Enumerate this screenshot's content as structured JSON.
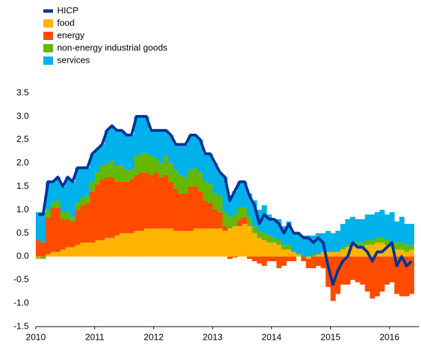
{
  "chart_data": {
    "type": "bar",
    "stacked": true,
    "x": [
      2010.0,
      2010.083,
      2010.167,
      2010.25,
      2010.333,
      2010.417,
      2010.5,
      2010.583,
      2010.667,
      2010.75,
      2010.833,
      2010.917,
      2011.0,
      2011.083,
      2011.167,
      2011.25,
      2011.333,
      2011.417,
      2011.5,
      2011.583,
      2011.667,
      2011.75,
      2011.833,
      2011.917,
      2012.0,
      2012.083,
      2012.167,
      2012.25,
      2012.333,
      2012.417,
      2012.5,
      2012.583,
      2012.667,
      2012.75,
      2012.833,
      2012.917,
      2013.0,
      2013.083,
      2013.167,
      2013.25,
      2013.333,
      2013.417,
      2013.5,
      2013.583,
      2013.667,
      2013.75,
      2013.833,
      2013.917,
      2014.0,
      2014.083,
      2014.167,
      2014.25,
      2014.333,
      2014.417,
      2014.5,
      2014.583,
      2014.667,
      2014.75,
      2014.833,
      2014.917,
      2015.0,
      2015.083,
      2015.167,
      2015.25,
      2015.333,
      2015.417,
      2015.5,
      2015.583,
      2015.667,
      2015.75,
      2015.833,
      2015.917,
      2016.0,
      2016.083,
      2016.167,
      2016.25,
      2016.333
    ],
    "series": [
      {
        "name": "HICP",
        "type": "line",
        "color": "#003299",
        "values": [
          0.9,
          0.9,
          1.6,
          1.6,
          1.7,
          1.5,
          1.7,
          1.6,
          1.9,
          1.9,
          1.9,
          2.2,
          2.3,
          2.4,
          2.7,
          2.8,
          2.7,
          2.7,
          2.6,
          2.6,
          3.0,
          3.0,
          3.0,
          2.7,
          2.7,
          2.7,
          2.7,
          2.6,
          2.4,
          2.4,
          2.4,
          2.6,
          2.6,
          2.5,
          2.2,
          2.2,
          2.0,
          1.8,
          1.7,
          1.2,
          1.4,
          1.6,
          1.6,
          1.3,
          1.1,
          0.7,
          0.9,
          0.8,
          0.8,
          0.7,
          0.5,
          0.7,
          0.5,
          0.5,
          0.4,
          0.4,
          0.3,
          0.4,
          0.3,
          -0.2,
          -0.6,
          -0.3,
          -0.1,
          0.0,
          0.3,
          0.2,
          0.2,
          0.1,
          -0.1,
          0.1,
          0.1,
          0.2,
          0.3,
          -0.2,
          0.0,
          -0.2,
          -0.1
        ]
      },
      {
        "name": "food",
        "type": "bar",
        "color": "#ffb400",
        "values": [
          -0.03,
          0.0,
          0.05,
          0.1,
          0.1,
          0.15,
          0.2,
          0.2,
          0.25,
          0.3,
          0.3,
          0.3,
          0.35,
          0.35,
          0.4,
          0.4,
          0.45,
          0.5,
          0.5,
          0.5,
          0.55,
          0.55,
          0.6,
          0.6,
          0.6,
          0.6,
          0.6,
          0.6,
          0.55,
          0.55,
          0.55,
          0.55,
          0.6,
          0.6,
          0.6,
          0.6,
          0.6,
          0.6,
          0.55,
          0.6,
          0.65,
          0.65,
          0.7,
          0.65,
          0.5,
          0.4,
          0.35,
          0.3,
          0.3,
          0.25,
          0.15,
          0.15,
          0.1,
          0.05,
          0.0,
          -0.05,
          0.0,
          0.05,
          0.1,
          0.1,
          0.1,
          0.1,
          0.15,
          0.2,
          0.25,
          0.2,
          0.2,
          0.25,
          0.25,
          0.3,
          0.3,
          0.25,
          0.2,
          0.15,
          0.15,
          0.1,
          0.15
        ]
      },
      {
        "name": "energy",
        "type": "bar",
        "color": "#ff4b00",
        "values": [
          0.35,
          0.3,
          0.8,
          0.95,
          0.95,
          0.65,
          0.6,
          0.55,
          0.75,
          0.8,
          0.85,
          1.1,
          1.2,
          1.3,
          1.3,
          1.3,
          1.15,
          1.1,
          1.1,
          1.15,
          1.2,
          1.25,
          1.2,
          1.15,
          1.2,
          1.1,
          1.15,
          1.0,
          0.9,
          0.8,
          0.8,
          0.95,
          0.9,
          0.8,
          0.6,
          0.55,
          0.4,
          0.35,
          0.1,
          -0.05,
          -0.02,
          0.15,
          0.15,
          -0.05,
          -0.1,
          -0.15,
          -0.2,
          -0.1,
          -0.1,
          -0.25,
          -0.2,
          -0.1,
          -0.1,
          0.0,
          -0.1,
          -0.2,
          -0.25,
          -0.2,
          -0.25,
          -0.65,
          -0.95,
          -0.8,
          -0.6,
          -0.6,
          -0.5,
          -0.55,
          -0.6,
          -0.75,
          -0.9,
          -0.85,
          -0.75,
          -0.6,
          -0.55,
          -0.8,
          -0.85,
          -0.85,
          -0.8
        ]
      },
      {
        "name": "non-energy industrial goods",
        "type": "bar",
        "color": "#65b800",
        "values": [
          -0.02,
          -0.05,
          0.15,
          0.1,
          0.15,
          0.15,
          0.15,
          0.1,
          0.15,
          0.15,
          0.15,
          0.2,
          0.25,
          0.3,
          0.3,
          0.35,
          0.35,
          0.35,
          0.25,
          0.2,
          0.4,
          0.4,
          0.4,
          0.4,
          0.3,
          0.3,
          0.4,
          0.4,
          0.4,
          0.4,
          0.35,
          0.35,
          0.4,
          0.4,
          0.4,
          0.4,
          0.35,
          0.35,
          0.3,
          0.25,
          0.25,
          0.25,
          0.2,
          0.2,
          0.15,
          0.15,
          0.15,
          0.15,
          0.1,
          0.1,
          0.1,
          0.1,
          0.0,
          0.0,
          0.0,
          0.0,
          0.05,
          0.0,
          0.0,
          0.0,
          0.0,
          0.0,
          0.05,
          0.05,
          0.05,
          0.1,
          0.1,
          0.1,
          0.1,
          0.1,
          0.1,
          0.1,
          0.1,
          0.15,
          0.15,
          0.15,
          0.1
        ]
      },
      {
        "name": "services",
        "type": "bar",
        "color": "#00b1ea",
        "values": [
          0.6,
          0.65,
          0.6,
          0.45,
          0.5,
          0.55,
          0.75,
          0.75,
          0.75,
          0.65,
          0.6,
          0.6,
          0.5,
          0.45,
          0.7,
          0.75,
          0.75,
          0.75,
          0.75,
          0.75,
          0.85,
          0.8,
          0.8,
          0.55,
          0.6,
          0.7,
          0.55,
          0.6,
          0.55,
          0.65,
          0.7,
          0.75,
          0.7,
          0.7,
          0.6,
          0.65,
          0.65,
          0.5,
          0.75,
          0.45,
          0.5,
          0.55,
          0.55,
          0.5,
          0.55,
          0.45,
          0.6,
          0.45,
          0.4,
          0.45,
          0.4,
          0.5,
          0.4,
          0.45,
          0.45,
          0.45,
          0.4,
          0.45,
          0.4,
          0.45,
          0.4,
          0.45,
          0.5,
          0.55,
          0.55,
          0.5,
          0.5,
          0.55,
          0.55,
          0.55,
          0.6,
          0.55,
          0.65,
          0.45,
          0.55,
          0.45,
          0.45
        ]
      }
    ],
    "xlim": [
      2010,
      2016.5
    ],
    "xticks": [
      2010,
      2011,
      2012,
      2013,
      2014,
      2015,
      2016
    ],
    "ylim": [
      -1.5,
      3.5
    ],
    "yticks": [
      3.5,
      {
        "value": 3.0,
        "label": "3.0"
      },
      2.5,
      {
        "value": 2.0,
        "label": "2.0"
      },
      1.5,
      {
        "value": 1.0,
        "label": "1.0"
      },
      0.5,
      {
        "value": 0.0,
        "label": "0.0"
      },
      -0.5,
      {
        "value": -1.0,
        "label": "-1.0"
      },
      -1.5
    ]
  }
}
